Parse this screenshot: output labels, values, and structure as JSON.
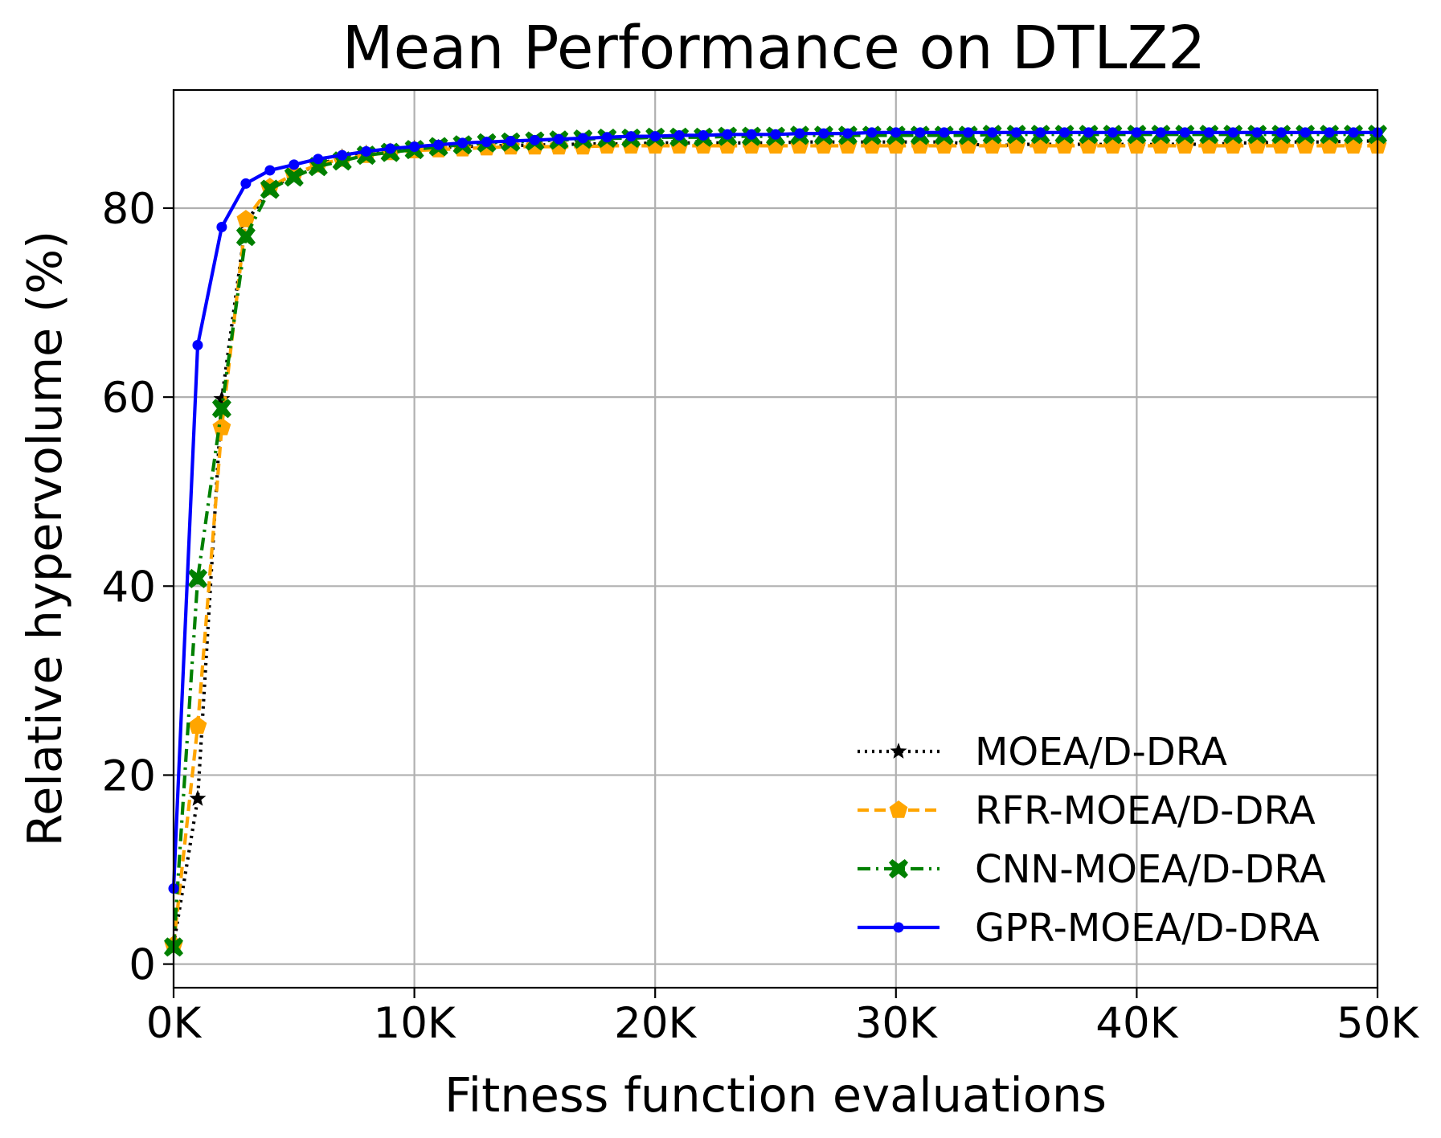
{
  "chart_data": {
    "type": "line",
    "title": "Mean Performance on DTLZ2",
    "xlabel": "Fitness function evaluations",
    "ylabel": "Relative hypervolume (%)",
    "xlim": [
      0,
      50000
    ],
    "ylim": [
      -2.5,
      92.5
    ],
    "grid": true,
    "legend_position": "lower-right",
    "x_ticks": [
      0,
      10000,
      20000,
      30000,
      40000,
      50000
    ],
    "x_tick_labels": [
      "0K",
      "10K",
      "20K",
      "30K",
      "40K",
      "50K"
    ],
    "y_ticks": [
      0,
      20,
      40,
      60,
      80
    ],
    "y_tick_labels": [
      "0",
      "20",
      "40",
      "60",
      "80"
    ],
    "x": [
      0,
      1000,
      2000,
      3000,
      4000,
      5000,
      6000,
      7000,
      8000,
      9000,
      10000,
      11000,
      12000,
      13000,
      14000,
      15000,
      16000,
      17000,
      18000,
      19000,
      20000,
      21000,
      22000,
      23000,
      24000,
      25000,
      26000,
      27000,
      28000,
      29000,
      30000,
      31000,
      32000,
      33000,
      34000,
      35000,
      36000,
      37000,
      38000,
      39000,
      40000,
      41000,
      42000,
      43000,
      44000,
      45000,
      46000,
      47000,
      48000,
      49000,
      50000
    ],
    "series": [
      {
        "name": "MOEA/D-DRA",
        "color": "#000000",
        "line_style": "dotted",
        "marker": "star",
        "values": [
          2.0,
          17.5,
          59.8,
          78.5,
          82.0,
          83.5,
          84.6,
          85.4,
          85.8,
          86.0,
          86.3,
          86.4,
          86.5,
          86.6,
          86.6,
          86.7,
          86.7,
          86.8,
          86.8,
          86.8,
          86.9,
          86.9,
          86.9,
          86.9,
          86.9,
          86.9,
          87.0,
          87.0,
          87.0,
          87.0,
          87.0,
          87.0,
          87.0,
          86.8,
          86.6,
          86.7,
          86.8,
          86.7,
          86.8,
          86.7,
          86.8,
          86.7,
          86.8,
          86.7,
          86.9,
          86.9,
          87.0,
          87.0,
          87.0,
          87.1,
          87.1
        ]
      },
      {
        "name": "RFR-MOEA/D-DRA",
        "color": "#ffa500",
        "line_style": "dashed",
        "marker": "pentagon",
        "values": [
          2.0,
          25.2,
          56.8,
          78.8,
          82.2,
          83.6,
          84.6,
          85.2,
          85.6,
          85.9,
          86.1,
          86.2,
          86.3,
          86.4,
          86.5,
          86.5,
          86.5,
          86.5,
          86.6,
          86.6,
          86.6,
          86.6,
          86.6,
          86.6,
          86.6,
          86.6,
          86.6,
          86.6,
          86.6,
          86.6,
          86.6,
          86.6,
          86.6,
          86.6,
          86.6,
          86.6,
          86.6,
          86.6,
          86.6,
          86.6,
          86.6,
          86.6,
          86.6,
          86.6,
          86.6,
          86.6,
          86.6,
          86.6,
          86.6,
          86.6,
          86.6
        ]
      },
      {
        "name": "CNN-MOEA/D-DRA",
        "color": "#008000",
        "line_style": "dashdot",
        "marker": "x-filled",
        "values": [
          1.8,
          40.8,
          58.8,
          77.0,
          82.0,
          83.3,
          84.4,
          85.0,
          85.6,
          85.9,
          86.2,
          86.5,
          86.7,
          86.9,
          87.0,
          87.1,
          87.2,
          87.3,
          87.4,
          87.4,
          87.5,
          87.5,
          87.5,
          87.6,
          87.6,
          87.6,
          87.7,
          87.7,
          87.7,
          87.7,
          87.7,
          87.7,
          87.7,
          87.7,
          87.8,
          87.8,
          87.8,
          87.8,
          87.8,
          87.8,
          87.8,
          87.8,
          87.8,
          87.8,
          87.8,
          87.8,
          87.8,
          87.8,
          87.8,
          87.8,
          87.8
        ]
      },
      {
        "name": "GPR-MOEA/D-DRA",
        "color": "#0000ff",
        "line_style": "solid",
        "marker": "dot",
        "values": [
          8.0,
          65.5,
          78.0,
          82.6,
          84.0,
          84.6,
          85.2,
          85.6,
          86.0,
          86.3,
          86.5,
          86.7,
          86.9,
          87.0,
          87.1,
          87.2,
          87.3,
          87.4,
          87.5,
          87.6,
          87.6,
          87.7,
          87.7,
          87.8,
          87.8,
          87.8,
          87.9,
          87.9,
          87.9,
          88.0,
          88.0,
          88.0,
          88.0,
          88.0,
          88.0,
          88.0,
          88.0,
          88.0,
          88.0,
          88.0,
          88.0,
          88.0,
          88.0,
          88.0,
          88.0,
          88.0,
          88.0,
          88.0,
          88.0,
          88.0,
          88.0
        ]
      }
    ]
  }
}
